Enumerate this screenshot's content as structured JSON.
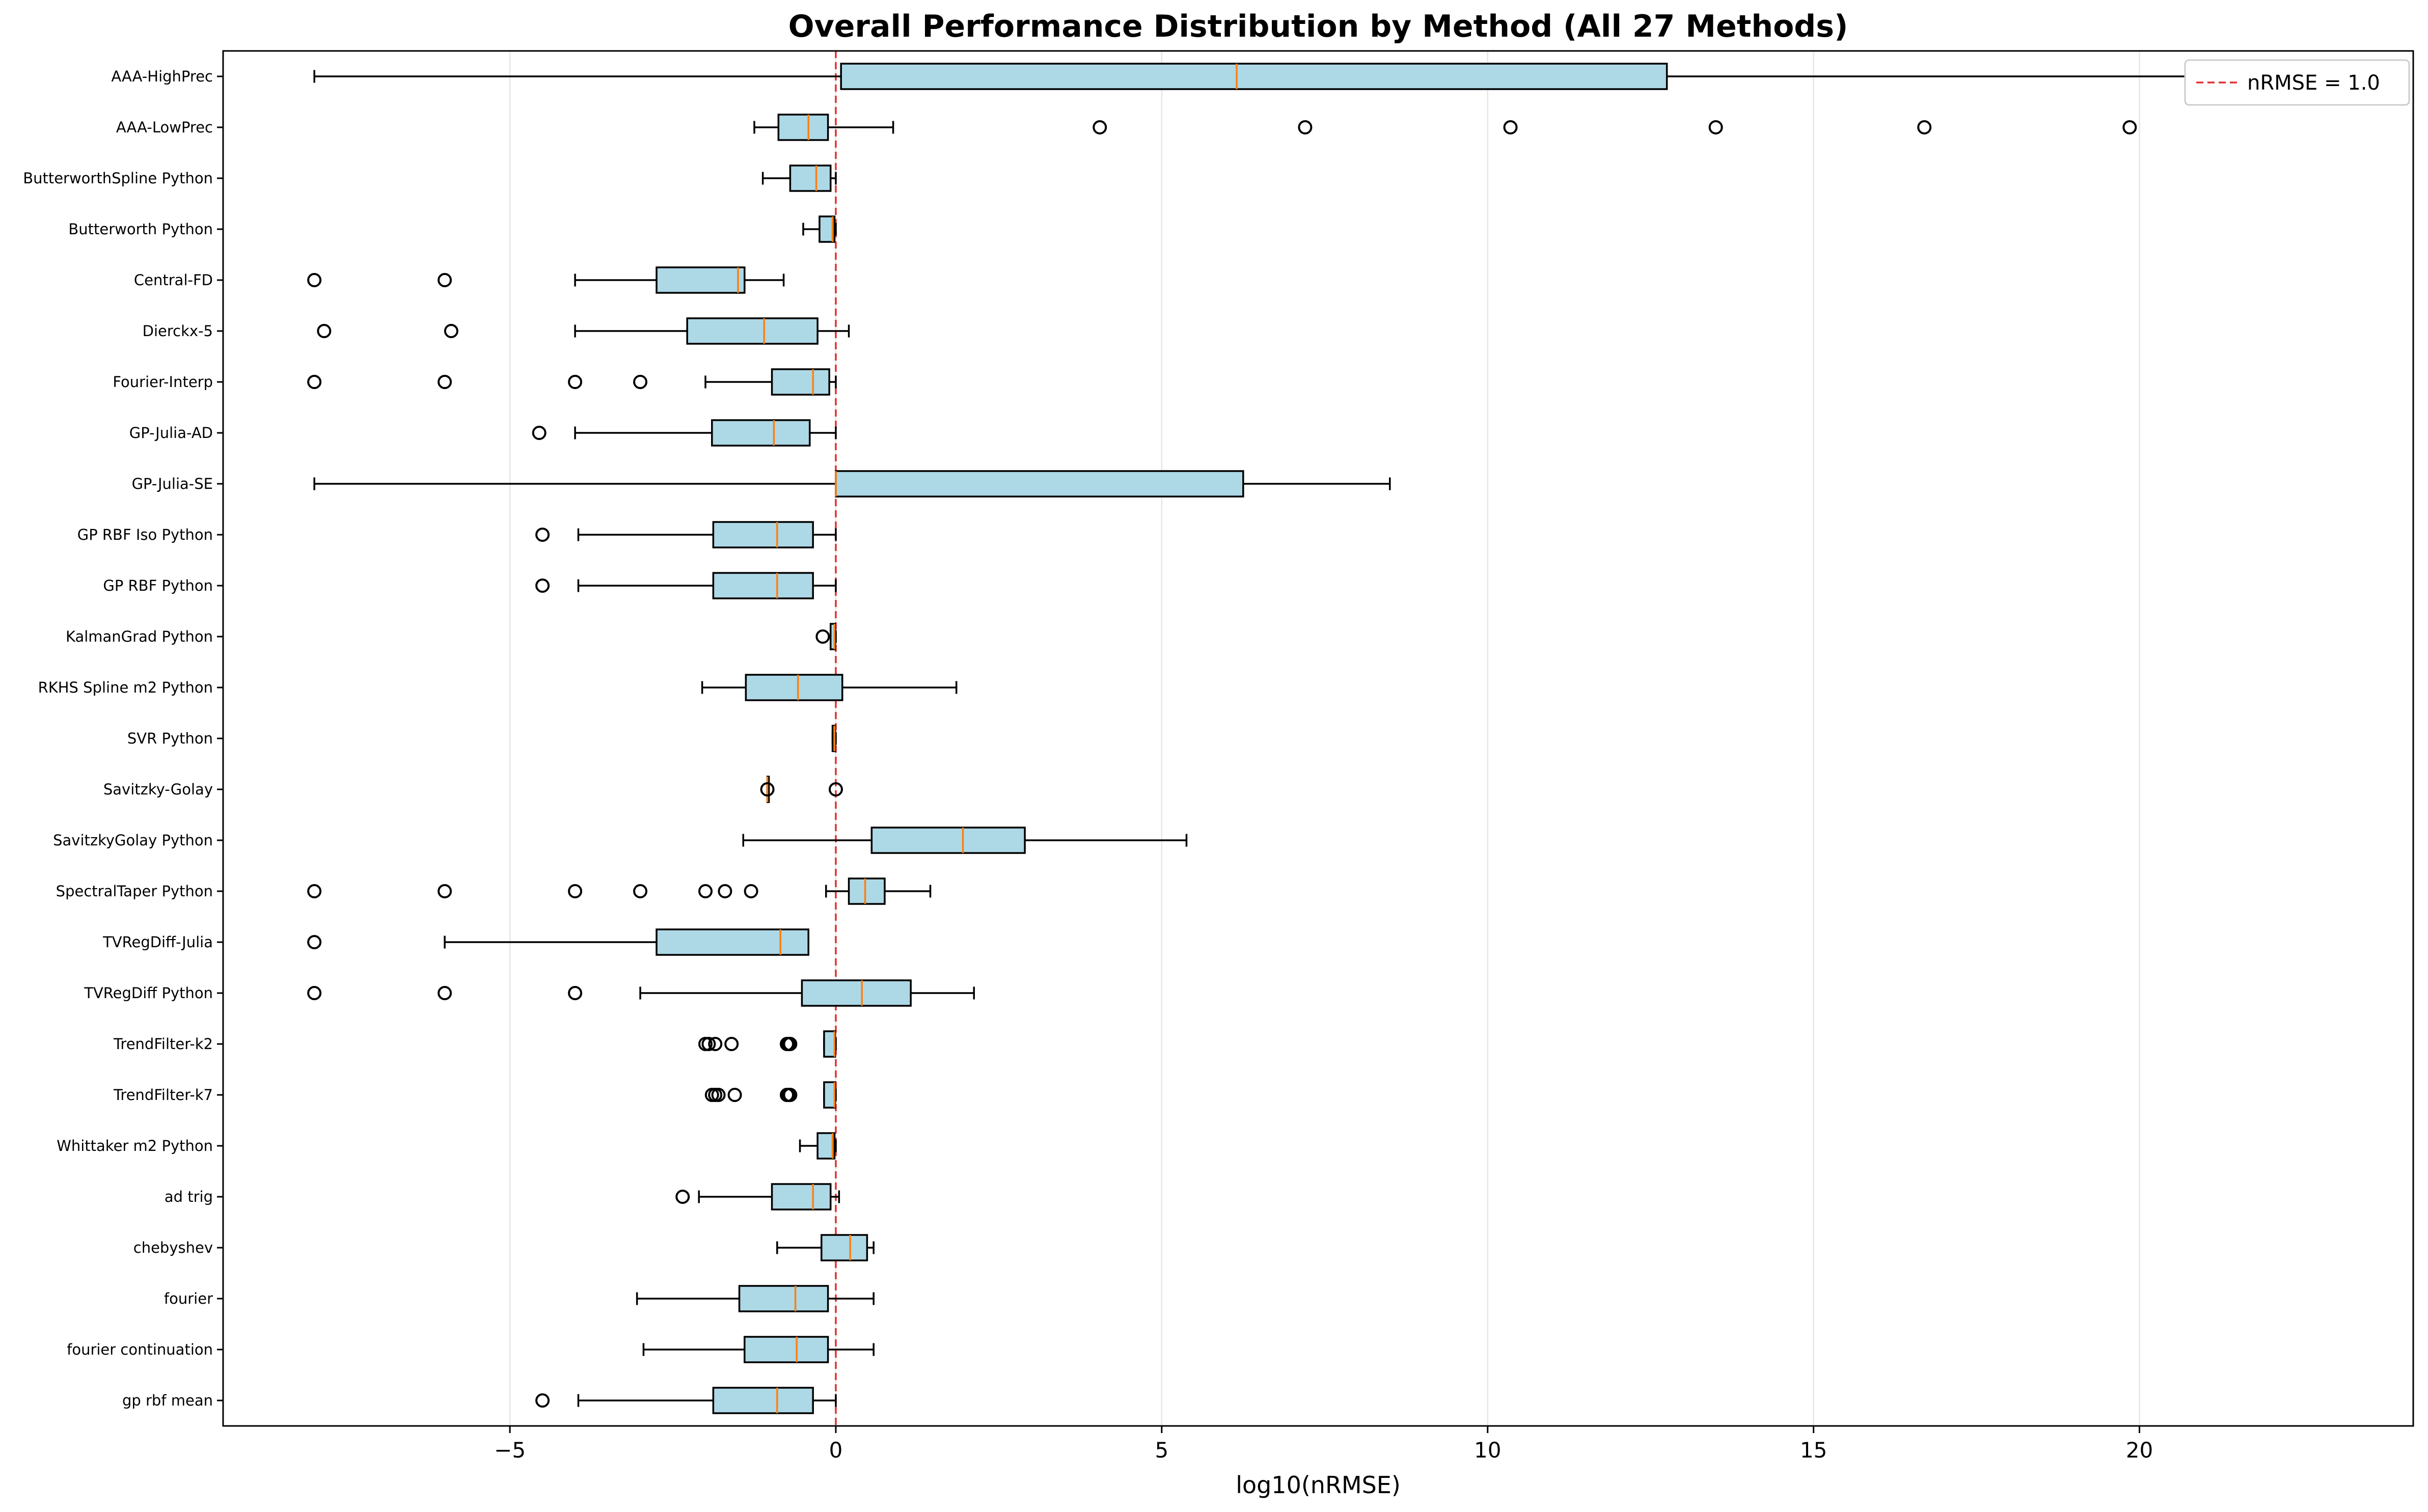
{
  "chart_data": {
    "type": "boxplot",
    "title": "Overall Performance Distribution by Method (All 27 Methods)",
    "xlabel": "log10(nRMSE)",
    "ylabel": "",
    "xlim": [
      -9.4,
      24.2
    ],
    "xticks": [
      -5,
      0,
      5,
      10,
      15,
      20
    ],
    "xtick_labels": [
      "−5",
      "0",
      "5",
      "10",
      "15",
      "20"
    ],
    "grid": "vertical",
    "orientation": "horizontal",
    "reference_line": {
      "x": 0,
      "label": "nRMSE = 1.0",
      "color": "#e03030",
      "style": "dashed"
    },
    "legend": {
      "position": "top-right",
      "entries": [
        "nRMSE = 1.0"
      ]
    },
    "colors": {
      "box_fill": "#add8e6",
      "median": "#ff7f0e",
      "edge": "#000000"
    },
    "methods": [
      {
        "name": "gp rbf mean",
        "whislo": -3.95,
        "q1": -1.88,
        "med": -0.9,
        "q3": -0.35,
        "whishi": 0.0,
        "fliers": [
          -4.5
        ]
      },
      {
        "name": "fourier continuation",
        "whislo": -2.95,
        "q1": -1.4,
        "med": -0.6,
        "q3": -0.12,
        "whishi": 0.58,
        "fliers": []
      },
      {
        "name": "fourier",
        "whislo": -3.05,
        "q1": -1.48,
        "med": -0.62,
        "q3": -0.12,
        "whishi": 0.58,
        "fliers": []
      },
      {
        "name": "chebyshev",
        "whislo": -0.9,
        "q1": -0.22,
        "med": 0.22,
        "q3": 0.48,
        "whishi": 0.58,
        "fliers": []
      },
      {
        "name": "ad trig",
        "whislo": -2.1,
        "q1": -0.98,
        "med": -0.35,
        "q3": -0.08,
        "whishi": 0.05,
        "fliers": [
          -2.35
        ]
      },
      {
        "name": "Whittaker m2 Python",
        "whislo": -0.55,
        "q1": -0.28,
        "med": -0.05,
        "q3": -0.02,
        "whishi": 0.0,
        "fliers": []
      },
      {
        "name": "TrendFilter-k7",
        "whislo": -0.18,
        "q1": -0.18,
        "med": -0.02,
        "q3": -0.01,
        "whishi": 0.0,
        "fliers": [
          -1.9,
          -1.85,
          -1.8,
          -1.55,
          -0.75,
          -0.72,
          -0.7
        ]
      },
      {
        "name": "TrendFilter-k2",
        "whislo": -0.18,
        "q1": -0.18,
        "med": -0.02,
        "q3": -0.01,
        "whishi": 0.0,
        "fliers": [
          -2.0,
          -1.95,
          -1.85,
          -1.6,
          -0.75,
          -0.72,
          -0.7
        ]
      },
      {
        "name": "TVRegDiff Python",
        "whislo": -3.0,
        "q1": -0.52,
        "med": 0.4,
        "q3": 1.15,
        "whishi": 2.12,
        "fliers": [
          -8.0,
          -6.0,
          -4.0
        ]
      },
      {
        "name": "TVRegDiff-Julia",
        "whislo": -6.0,
        "q1": -2.75,
        "med": -0.85,
        "q3": -0.42,
        "whishi": -0.42,
        "fliers": [
          -8.0
        ]
      },
      {
        "name": "SpectralTaper Python",
        "whislo": -0.15,
        "q1": 0.2,
        "med": 0.45,
        "q3": 0.75,
        "whishi": 1.45,
        "fliers": [
          -8.0,
          -6.0,
          -4.0,
          -3.0,
          -2.0,
          -1.7,
          -1.3
        ]
      },
      {
        "name": "SavitzkyGolay Python",
        "whislo": -1.42,
        "q1": 0.55,
        "med": 1.95,
        "q3": 2.9,
        "whishi": 5.38,
        "fliers": []
      },
      {
        "name": "Savitzky-Golay",
        "whislo": -1.05,
        "q1": -1.05,
        "med": -1.05,
        "q3": -1.05,
        "whishi": -1.05,
        "fliers": [
          -1.05,
          0.0
        ]
      },
      {
        "name": "SVR Python",
        "whislo": -0.05,
        "q1": -0.05,
        "med": -0.02,
        "q3": -0.01,
        "whishi": 0.0,
        "fliers": []
      },
      {
        "name": "RKHS Spline m2 Python",
        "whislo": -2.05,
        "q1": -1.38,
        "med": -0.58,
        "q3": 0.1,
        "whishi": 1.85,
        "fliers": []
      },
      {
        "name": "KalmanGrad Python",
        "whislo": -0.08,
        "q1": -0.08,
        "med": -0.02,
        "q3": -0.01,
        "whishi": 0.0,
        "fliers": [
          -0.2
        ]
      },
      {
        "name": "GP RBF Python",
        "whislo": -3.95,
        "q1": -1.88,
        "med": -0.9,
        "q3": -0.35,
        "whishi": 0.0,
        "fliers": [
          -4.5
        ]
      },
      {
        "name": "GP RBF Iso Python",
        "whislo": -3.95,
        "q1": -1.88,
        "med": -0.9,
        "q3": -0.35,
        "whishi": 0.0,
        "fliers": [
          -4.5
        ]
      },
      {
        "name": "GP-Julia-SE",
        "whislo": -8.0,
        "q1": 0.0,
        "med": 0.0,
        "q3": 6.25,
        "whishi": 8.5,
        "fliers": []
      },
      {
        "name": "GP-Julia-AD",
        "whislo": -4.0,
        "q1": -1.9,
        "med": -0.95,
        "q3": -0.4,
        "whishi": 0.0,
        "fliers": [
          -4.55
        ]
      },
      {
        "name": "Fourier-Interp",
        "whislo": -2.0,
        "q1": -0.98,
        "med": -0.35,
        "q3": -0.1,
        "whishi": 0.0,
        "fliers": [
          -8.0,
          -6.0,
          -4.0,
          -3.0
        ]
      },
      {
        "name": "Dierckx-5",
        "whislo": -4.0,
        "q1": -2.28,
        "med": -1.1,
        "q3": -0.28,
        "whishi": 0.2,
        "fliers": [
          -7.85,
          -5.9
        ]
      },
      {
        "name": "Central-FD",
        "whislo": -4.0,
        "q1": -2.75,
        "med": -1.5,
        "q3": -1.4,
        "whishi": -0.8,
        "fliers": [
          -8.0,
          -6.0
        ]
      },
      {
        "name": "Butterworth Python",
        "whislo": -0.5,
        "q1": -0.25,
        "med": -0.05,
        "q3": -0.02,
        "whishi": 0.0,
        "fliers": []
      },
      {
        "name": "ButterworthSpline Python",
        "whislo": -1.12,
        "q1": -0.7,
        "med": -0.3,
        "q3": -0.08,
        "whishi": 0.0,
        "fliers": []
      },
      {
        "name": "AAA-LowPrec",
        "whislo": -1.25,
        "q1": -0.88,
        "med": -0.42,
        "q3": -0.12,
        "whishi": 0.88,
        "fliers": [
          4.05,
          7.2,
          10.35,
          13.5,
          16.7,
          19.85
        ]
      },
      {
        "name": "AAA-HighPrec",
        "whislo": -8.0,
        "q1": 0.08,
        "med": 6.15,
        "q3": 12.75,
        "whishi": 22.95,
        "fliers": []
      }
    ]
  }
}
